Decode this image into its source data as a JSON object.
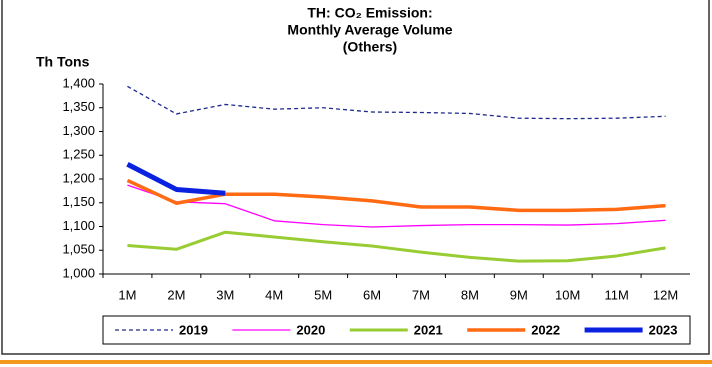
{
  "chart_data": {
    "type": "line",
    "title": [
      "TH: CO₂ Emission:",
      "Monthly Average Volume",
      "(Others)"
    ],
    "y_label": "Th Tons",
    "categories": [
      "1M",
      "2M",
      "3M",
      "4M",
      "5M",
      "6M",
      "7M",
      "8M",
      "9M",
      "10M",
      "11M",
      "12M"
    ],
    "series": [
      {
        "name": "2019",
        "color": "#1f2a8a",
        "width": 1.3,
        "dash": true,
        "values": [
          1395,
          1337,
          1357,
          1347,
          1350,
          1341,
          1340,
          1338,
          1328,
          1327,
          1328,
          1332
        ]
      },
      {
        "name": "2020",
        "color": "#ff00ff",
        "width": 1.3,
        "dash": false,
        "values": [
          1187,
          1152,
          1148,
          1112,
          1104,
          1099,
          1102,
          1104,
          1104,
          1103,
          1106,
          1113
        ]
      },
      {
        "name": "2021",
        "color": "#99cc33",
        "width": 3,
        "dash": false,
        "values": [
          1060,
          1052,
          1088,
          1078,
          1068,
          1059,
          1046,
          1035,
          1027,
          1028,
          1038,
          1055
        ]
      },
      {
        "name": "2022",
        "color": "#ff6a13",
        "width": 3.5,
        "dash": false,
        "values": [
          1197,
          1149,
          1168,
          1168,
          1162,
          1154,
          1141,
          1141,
          1134,
          1134,
          1136,
          1144
        ]
      },
      {
        "name": "2023",
        "color": "#0a22e0",
        "width": 5,
        "dash": false,
        "values": [
          1231,
          1178,
          1170,
          null,
          null,
          null,
          null,
          null,
          null,
          null,
          null,
          null
        ]
      }
    ],
    "ylim": [
      1000,
      1400
    ],
    "yticks": [
      {
        "value": 1000,
        "label": "1,000"
      },
      {
        "value": 1050,
        "label": "1,050"
      },
      {
        "value": 1100,
        "label": "1,100"
      },
      {
        "value": 1150,
        "label": "1,150"
      },
      {
        "value": 1200,
        "label": "1,200"
      },
      {
        "value": 1250,
        "label": "1,250"
      },
      {
        "value": 1300,
        "label": "1,300"
      },
      {
        "value": 1350,
        "label": "1,350"
      },
      {
        "value": 1400,
        "label": "1,400"
      }
    ],
    "grid": false
  }
}
